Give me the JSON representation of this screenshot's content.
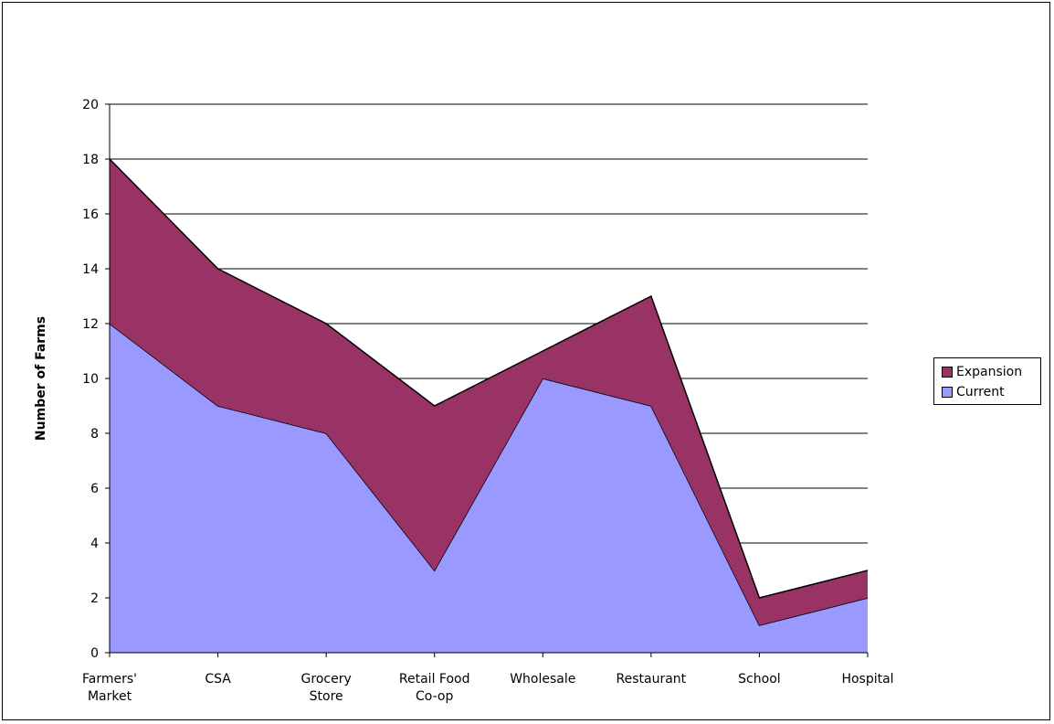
{
  "chart_data": {
    "type": "area",
    "stacked": true,
    "categories": [
      "Farmers' Market",
      "CSA",
      "Grocery Store",
      "Retail Food Co-op",
      "Wholesale",
      "Restaurant",
      "School",
      "Hospital"
    ],
    "category_lines": [
      [
        "Farmers'",
        "Market"
      ],
      [
        "CSA"
      ],
      [
        "Grocery",
        "Store"
      ],
      [
        "Retail Food",
        "Co-op"
      ],
      [
        "Wholesale"
      ],
      [
        "Restaurant"
      ],
      [
        "School"
      ],
      [
        "Hospital"
      ]
    ],
    "series": [
      {
        "name": "Current",
        "values": [
          12,
          9,
          8,
          3,
          10,
          9,
          1,
          2
        ],
        "color": "#9999ff"
      },
      {
        "name": "Expansion",
        "values": [
          6,
          5,
          4,
          6,
          1,
          4,
          1,
          1
        ],
        "color": "#993366"
      }
    ],
    "ylabel": "Number of Farms",
    "xlabel": "",
    "ylim": [
      0,
      20
    ],
    "yticks": [
      0,
      2,
      4,
      6,
      8,
      10,
      12,
      14,
      16,
      18,
      20
    ],
    "grid": true,
    "legend": {
      "position": "right",
      "items": [
        {
          "label": "Expansion",
          "color": "#993366"
        },
        {
          "label": "Current",
          "color": "#9999ff"
        }
      ]
    }
  }
}
